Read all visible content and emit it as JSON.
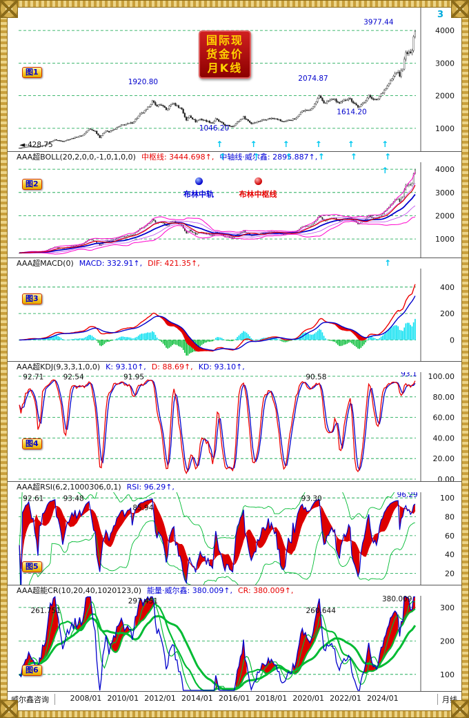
{
  "window": {
    "title": "国际现货金价月K线"
  },
  "title_badge": {
    "lines": [
      "国际现",
      "货金价",
      "月K线"
    ]
  },
  "misc": {
    "top_right": "3"
  },
  "bottom_axis": {
    "left_label": "威尔鑫咨询",
    "right_label": "月线"
  },
  "panels": {
    "price": {
      "badge": "图1"
    },
    "boll": {
      "badge": "图2",
      "name": "AAA超BOLL(20,2,0,0,-1,0,1,0,0)",
      "seg_mid": "中枢线: 3444.698↑,",
      "seg_axis": "中轴线·威尔鑫: 2895.887↑,",
      "legend": [
        "布林中轨",
        "布林中枢线"
      ]
    },
    "macd": {
      "badge": "图3",
      "name": "AAA超MACD(0)",
      "seg_macd": "MACD: 332.91↑,",
      "seg_dif": "DIF: 421.35↑,"
    },
    "kdj": {
      "badge": "图4",
      "name": "AAA超KDJ(9,3,3,1,0,0)",
      "seg_k": "K: 93.10↑,",
      "seg_d": "D: 88.69↑,",
      "seg_kd": "KD: 93.10↑,"
    },
    "rsi": {
      "badge": "图5",
      "name": "AAA超RSI(6,2,1000306,0,1)",
      "seg_rsi": "RSI: 96.29↑,"
    },
    "cr": {
      "badge": "图6",
      "name": "AAA超能CR(10,20,40,1020123,0)",
      "seg_energy": "能量·威尔鑫: 380.009↑,",
      "seg_cr": "CR: 380.009↑,"
    }
  },
  "chart_data": [
    {
      "id": "price",
      "type": "candlestick",
      "title": "国际现货金价月K线",
      "start_month": "2004/06",
      "end_month": "2025/10",
      "n": 257,
      "ylim": [
        300,
        4700
      ],
      "yticks": [
        1000,
        2000,
        3000,
        4000
      ],
      "x_labels": [
        "2008/01",
        "2010/01",
        "2012/01",
        "2014/01",
        "2016/01",
        "2018/01",
        "2020/01",
        "2022/01",
        "2024/01"
      ],
      "x_label_indices": [
        43,
        67,
        91,
        115,
        139,
        163,
        187,
        211,
        235
      ],
      "close_anchors": [
        [
          0,
          398
        ],
        [
          6,
          438
        ],
        [
          12,
          428
        ],
        [
          18,
          513
        ],
        [
          19,
          560
        ],
        [
          23,
          650
        ],
        [
          28,
          600
        ],
        [
          31,
          650
        ],
        [
          41,
          790
        ],
        [
          45,
          980
        ],
        [
          49,
          915
        ],
        [
          52,
          725
        ],
        [
          56,
          940
        ],
        [
          58,
          885
        ],
        [
          66,
          1095
        ],
        [
          73,
          1170
        ],
        [
          78,
          1420
        ],
        [
          82,
          1560
        ],
        [
          86,
          1830
        ],
        [
          88,
          1700
        ],
        [
          92,
          1720
        ],
        [
          95,
          1560
        ],
        [
          99,
          1775
        ],
        [
          105,
          1595
        ],
        [
          108,
          1235
        ],
        [
          110,
          1395
        ],
        [
          114,
          1205
        ],
        [
          117,
          1285
        ],
        [
          125,
          1165
        ],
        [
          127,
          1280
        ],
        [
          133,
          1095
        ],
        [
          138,
          1062
        ],
        [
          145,
          1350
        ],
        [
          150,
          1150
        ],
        [
          159,
          1280
        ],
        [
          162,
          1300
        ],
        [
          166,
          1315
        ],
        [
          170,
          1200
        ],
        [
          179,
          1300
        ],
        [
          182,
          1520
        ],
        [
          189,
          1580
        ],
        [
          194,
          1970
        ],
        [
          197,
          1780
        ],
        [
          203,
          1900
        ],
        [
          207,
          1755
        ],
        [
          213,
          1940
        ],
        [
          219,
          1660
        ],
        [
          220,
          1640
        ],
        [
          226,
          1990
        ],
        [
          231,
          1850
        ],
        [
          234,
          2060
        ],
        [
          238,
          2290
        ],
        [
          244,
          2740
        ],
        [
          246,
          2620
        ],
        [
          248,
          2860
        ],
        [
          250,
          3300
        ],
        [
          252,
          3290
        ],
        [
          254,
          3440
        ],
        [
          255,
          3820
        ],
        [
          256,
          3960
        ]
      ],
      "annotations": [
        {
          "i": 80,
          "v": 2350,
          "t": "1920.80",
          "c": "#0000cc"
        },
        {
          "i": 126,
          "v": 930,
          "t": "1046.20",
          "c": "#0000cc"
        },
        {
          "i": 190,
          "v": 2460,
          "t": "2074.87",
          "c": "#0000cc"
        },
        {
          "i": 215,
          "v": 1430,
          "t": "1614.20",
          "c": "#0000cc"
        },
        {
          "i": 242,
          "v": 4180,
          "t": "3977.44",
          "c": "#0000cc",
          "a": "end"
        },
        {
          "i": 0,
          "v": 430,
          "t": "◄-428.75",
          "c": "#111111",
          "a": "start"
        }
      ],
      "arrows_i": [
        129,
        151,
        172,
        193,
        214,
        236
      ]
    },
    {
      "id": "boll",
      "type": "line",
      "params": "(20,2,0,0,-1,0,1,0,0)",
      "mid_line": 3444.698,
      "axis_line": 2895.887,
      "ylim": [
        200,
        4300
      ],
      "yticks": [
        1000,
        2000,
        3000,
        4000
      ],
      "ma_mid": 20,
      "ma_pivot": 10,
      "band_k": 2,
      "colors": {
        "mid": "#0000cc",
        "pivot": "#dd0000",
        "band": "#ff00cc",
        "inner_band": "#bb44ee"
      },
      "header_arrows_i": [
        129,
        151,
        172,
        193,
        214,
        236
      ],
      "arrows_i": [
        236
      ]
    },
    {
      "id": "macd",
      "type": "macd",
      "params": "(0)",
      "macd": 332.91,
      "dif": 421.35,
      "ylim": [
        -160,
        540
      ],
      "yticks": [
        0,
        200,
        400
      ],
      "colors": {
        "dif": "#ee0000",
        "dea": "#0000cc",
        "hist_pos": "#00dff0",
        "hist_neg": "#00bb33",
        "cross_fill": "#dd0000"
      },
      "header_arrows_i": [
        236
      ]
    },
    {
      "id": "kdj",
      "type": "oscillator",
      "params": "(9,3,3,1,0,0)",
      "k": 93.1,
      "d": 88.69,
      "kd": 93.1,
      "ylim": [
        -2,
        104
      ],
      "yticks": [
        0,
        20,
        40,
        60,
        80,
        100
      ],
      "colors": {
        "k": "#ee0000",
        "d": "#0000cc"
      },
      "labels": [
        {
          "i": 9,
          "v": 97,
          "t": "92.71"
        },
        {
          "i": 35,
          "v": 97,
          "t": "92.54"
        },
        {
          "i": 74,
          "v": 97,
          "t": "91.95"
        },
        {
          "i": 192,
          "v": 97,
          "t": "90.58"
        },
        {
          "i": 252,
          "v": 100,
          "t": "93.1",
          "c": "#0000cc"
        }
      ]
    },
    {
      "id": "rsi",
      "type": "oscillator",
      "params": "(6,2,1000306,0,1)",
      "rsi": 96.29,
      "ylim": [
        8,
        106
      ],
      "yticks": [
        20,
        40,
        60,
        80,
        100
      ],
      "colors": {
        "rsi": "#0000cc",
        "ma": "#dd0000",
        "bands": "#00bb33",
        "fill": "#dd0000"
      },
      "labels": [
        {
          "i": 9,
          "v": 97,
          "t": "92.61"
        },
        {
          "i": 35,
          "v": 97,
          "t": "93.48"
        },
        {
          "i": 80,
          "v": 87,
          "t": "85.94"
        },
        {
          "i": 189,
          "v": 97,
          "t": "93.30"
        },
        {
          "i": 251,
          "v": 101,
          "t": "96.29",
          "c": "#0000cc"
        }
      ]
    },
    {
      "id": "cr",
      "type": "oscillator",
      "params": "(10,20,40,1020123,0)",
      "energy": 380.009,
      "cr": 380.009,
      "ylim": [
        50,
        335
      ],
      "yticks": [
        100,
        200,
        300
      ],
      "colors": {
        "cr": "#0000cc",
        "ma": "#00bb33",
        "fill": "#dd0000"
      },
      "labels": [
        {
          "i": 17,
          "v": 283,
          "t": "261.751"
        },
        {
          "i": 80,
          "v": 312,
          "t": "297.451"
        },
        {
          "i": 195,
          "v": 283,
          "t": "260.644"
        },
        {
          "i": 254,
          "v": 318,
          "t": "380.009",
          "a": "end"
        }
      ]
    }
  ]
}
